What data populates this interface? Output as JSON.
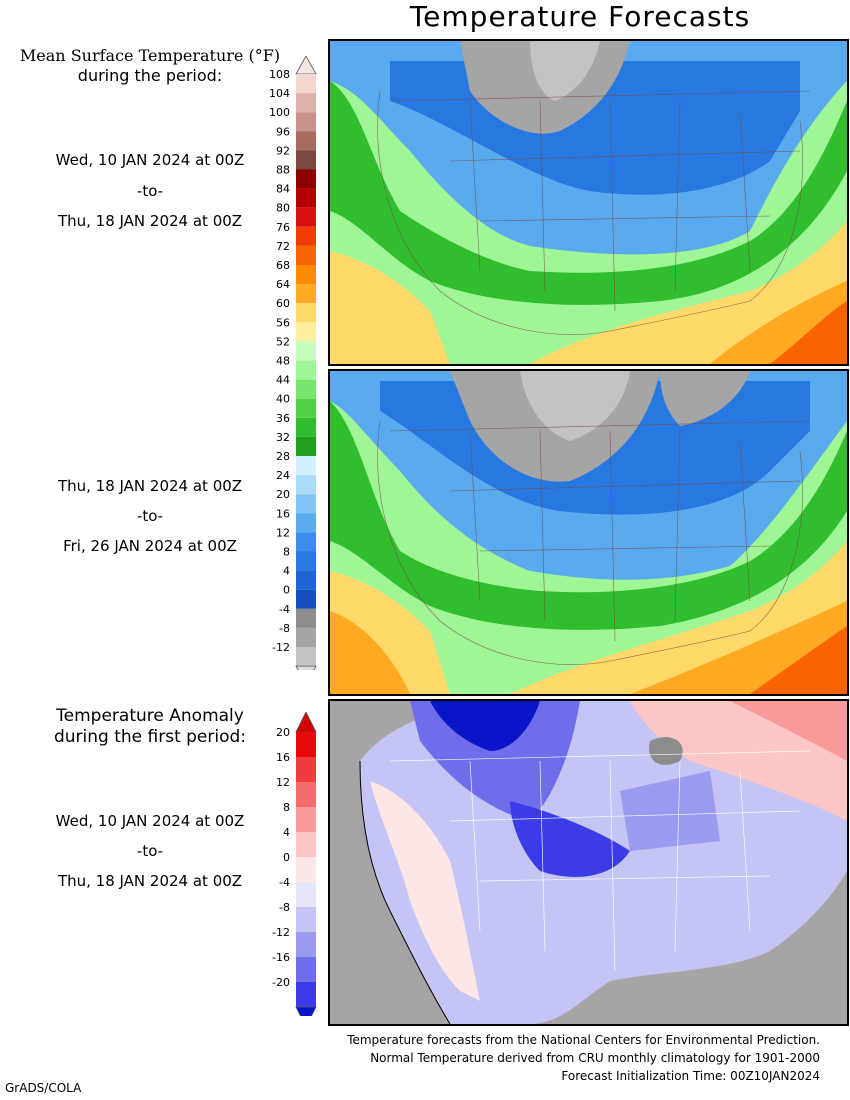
{
  "title": "Temperature Forecasts",
  "mean_legend": {
    "heading_line1": "Mean Surface Temperature (°F)",
    "heading_line2": "during the period:",
    "bins": [
      {
        "label": "108",
        "color": "#f2d6d0"
      },
      {
        "label": "104",
        "color": "#dfb2a9"
      },
      {
        "label": "100",
        "color": "#c9928a"
      },
      {
        "label": "96",
        "color": "#a66a5e"
      },
      {
        "label": "92",
        "color": "#7a4a3e"
      },
      {
        "label": "88",
        "color": "#8c0000"
      },
      {
        "label": "84",
        "color": "#b40000"
      },
      {
        "label": "80",
        "color": "#d81010"
      },
      {
        "label": "76",
        "color": "#f03c00"
      },
      {
        "label": "72",
        "color": "#fa6400"
      },
      {
        "label": "68",
        "color": "#ff8c00"
      },
      {
        "label": "64",
        "color": "#ffaa22"
      },
      {
        "label": "60",
        "color": "#ffd86a"
      },
      {
        "label": "56",
        "color": "#fff0a0"
      },
      {
        "label": "52",
        "color": "#c8ffbe"
      },
      {
        "label": "48",
        "color": "#a0f596"
      },
      {
        "label": "44",
        "color": "#78e66e"
      },
      {
        "label": "40",
        "color": "#50d246"
      },
      {
        "label": "36",
        "color": "#30be2e"
      },
      {
        "label": "32",
        "color": "#1ea01e"
      },
      {
        "label": "28",
        "color": "#d2f0ff"
      },
      {
        "label": "24",
        "color": "#aadcfa"
      },
      {
        "label": "20",
        "color": "#82c4f5"
      },
      {
        "label": "16",
        "color": "#5aaaf0"
      },
      {
        "label": "12",
        "color": "#3c8ceb"
      },
      {
        "label": "8",
        "color": "#2878e1"
      },
      {
        "label": "4",
        "color": "#1e64d2"
      },
      {
        "label": "0",
        "color": "#1450be"
      },
      {
        "label": "-4",
        "color": "#8c8c8c"
      },
      {
        "label": "-8",
        "color": "#a5a5a5"
      },
      {
        "label": "-12",
        "color": "#c3c3c3"
      }
    ],
    "bottom_color": "#dcdcdc",
    "top_color": "#f5e6e2"
  },
  "period1": {
    "start": "Wed, 10 JAN 2024 at 00Z",
    "sep": "-to-",
    "end": "Thu, 18 JAN 2024 at 00Z"
  },
  "period2": {
    "start": "Thu, 18 JAN 2024 at 00Z",
    "sep": "-to-",
    "end": "Fri, 26 JAN 2024 at 00Z"
  },
  "anom_legend": {
    "heading_line1": "Temperature Anomaly",
    "heading_line2": "during the first period:",
    "bins": [
      {
        "label": "20",
        "color": "#e60a0a"
      },
      {
        "label": "16",
        "color": "#f03c3c"
      },
      {
        "label": "12",
        "color": "#f56e6e"
      },
      {
        "label": "8",
        "color": "#fa9a9a"
      },
      {
        "label": "4",
        "color": "#fcc6c6"
      },
      {
        "label": "0",
        "color": "#fde6e6"
      },
      {
        "label": "-4",
        "color": "#e6e6fa"
      },
      {
        "label": "-8",
        "color": "#c4c4f5"
      },
      {
        "label": "-12",
        "color": "#9a9af0"
      },
      {
        "label": "-16",
        "color": "#6e6eeb"
      },
      {
        "label": "-20",
        "color": "#3c3ce6"
      }
    ],
    "top_color": "#d20000",
    "bottom_color": "#0a14c8"
  },
  "period3": {
    "start": "Wed, 10 JAN 2024 at 00Z",
    "sep": "-to-",
    "end": "Thu, 18 JAN 2024 at 00Z"
  },
  "footer": {
    "line1": "Temperature forecasts from the National Centers for Environmental Prediction.",
    "line2": "Normal Temperature derived from CRU monthly climatology for 1901-2000",
    "line3": "Forecast Initialization Time: 00Z10JAN2024"
  },
  "credit": "GrADS/COLA"
}
